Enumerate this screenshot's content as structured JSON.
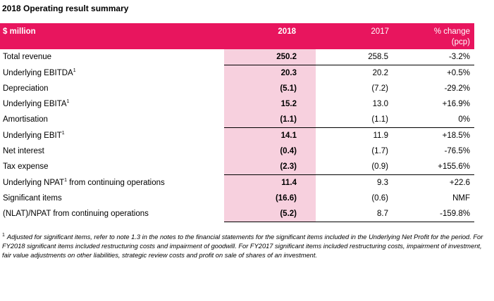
{
  "title": "2018 Operating result summary",
  "header": {
    "label": "$ million",
    "col_2018": "2018",
    "col_2017": "2017",
    "col_change": "% change",
    "col_change_sub": "(pcp)"
  },
  "rows": [
    {
      "label": "Total revenue",
      "sup": "",
      "label_rest": "",
      "v2018": "250.2",
      "v2017": "258.5",
      "change": "-3.2%"
    },
    {
      "label": "Underlying EBITDA",
      "sup": "1",
      "label_rest": "",
      "v2018": "20.3",
      "v2017": "20.2",
      "change": "+0.5%"
    },
    {
      "label": "Depreciation",
      "sup": "",
      "label_rest": "",
      "v2018": "(5.1)",
      "v2017": "(7.2)",
      "change": "-29.2%"
    },
    {
      "label": "Underlying EBITA",
      "sup": "1",
      "label_rest": "",
      "v2018": "15.2",
      "v2017": "13.0",
      "change": "+16.9%"
    },
    {
      "label": "Amortisation",
      "sup": "",
      "label_rest": "",
      "v2018": "(1.1)",
      "v2017": "(1.1)",
      "change": "0%"
    },
    {
      "label": "Underlying EBIT",
      "sup": "1",
      "label_rest": "",
      "v2018": "14.1",
      "v2017": "11.9",
      "change": "+18.5%"
    },
    {
      "label": "Net interest",
      "sup": "",
      "label_rest": "",
      "v2018": "(0.4)",
      "v2017": "(1.7)",
      "change": "-76.5%"
    },
    {
      "label": "Tax expense",
      "sup": "",
      "label_rest": "",
      "v2018": "(2.3)",
      "v2017": "(0.9)",
      "change": "+155.6%"
    },
    {
      "label": "Underlying NPAT",
      "sup": "1",
      "label_rest": " from continuing operations",
      "v2018": "11.4",
      "v2017": "9.3",
      "change": "+22.6"
    },
    {
      "label": "Significant items",
      "sup": "",
      "label_rest": "",
      "v2018": "(16.6)",
      "v2017": "(0.6)",
      "change": "NMF"
    },
    {
      "label": "(NLAT)/NPAT from continuing operations",
      "sup": "",
      "label_rest": "",
      "v2018": "(5.2)",
      "v2017": "8.7",
      "change": "-159.8%"
    }
  ],
  "footnote": {
    "marker": "1",
    "text": "Adjusted for significant items, refer to note 1.3 in the notes to the financial statements for the significant items included in the Underlying Net Profit for the period.  For FY2018 significant items included restructuring costs and impairment of goodwill. For FY2017 significant items included restructuring costs, impairment of investment, fair value adjustments on other liabilities, strategic review costs and profit on sale of shares of an investment."
  },
  "colors": {
    "header_bg": "#e8155e",
    "highlight_col": "#f7d0de"
  }
}
